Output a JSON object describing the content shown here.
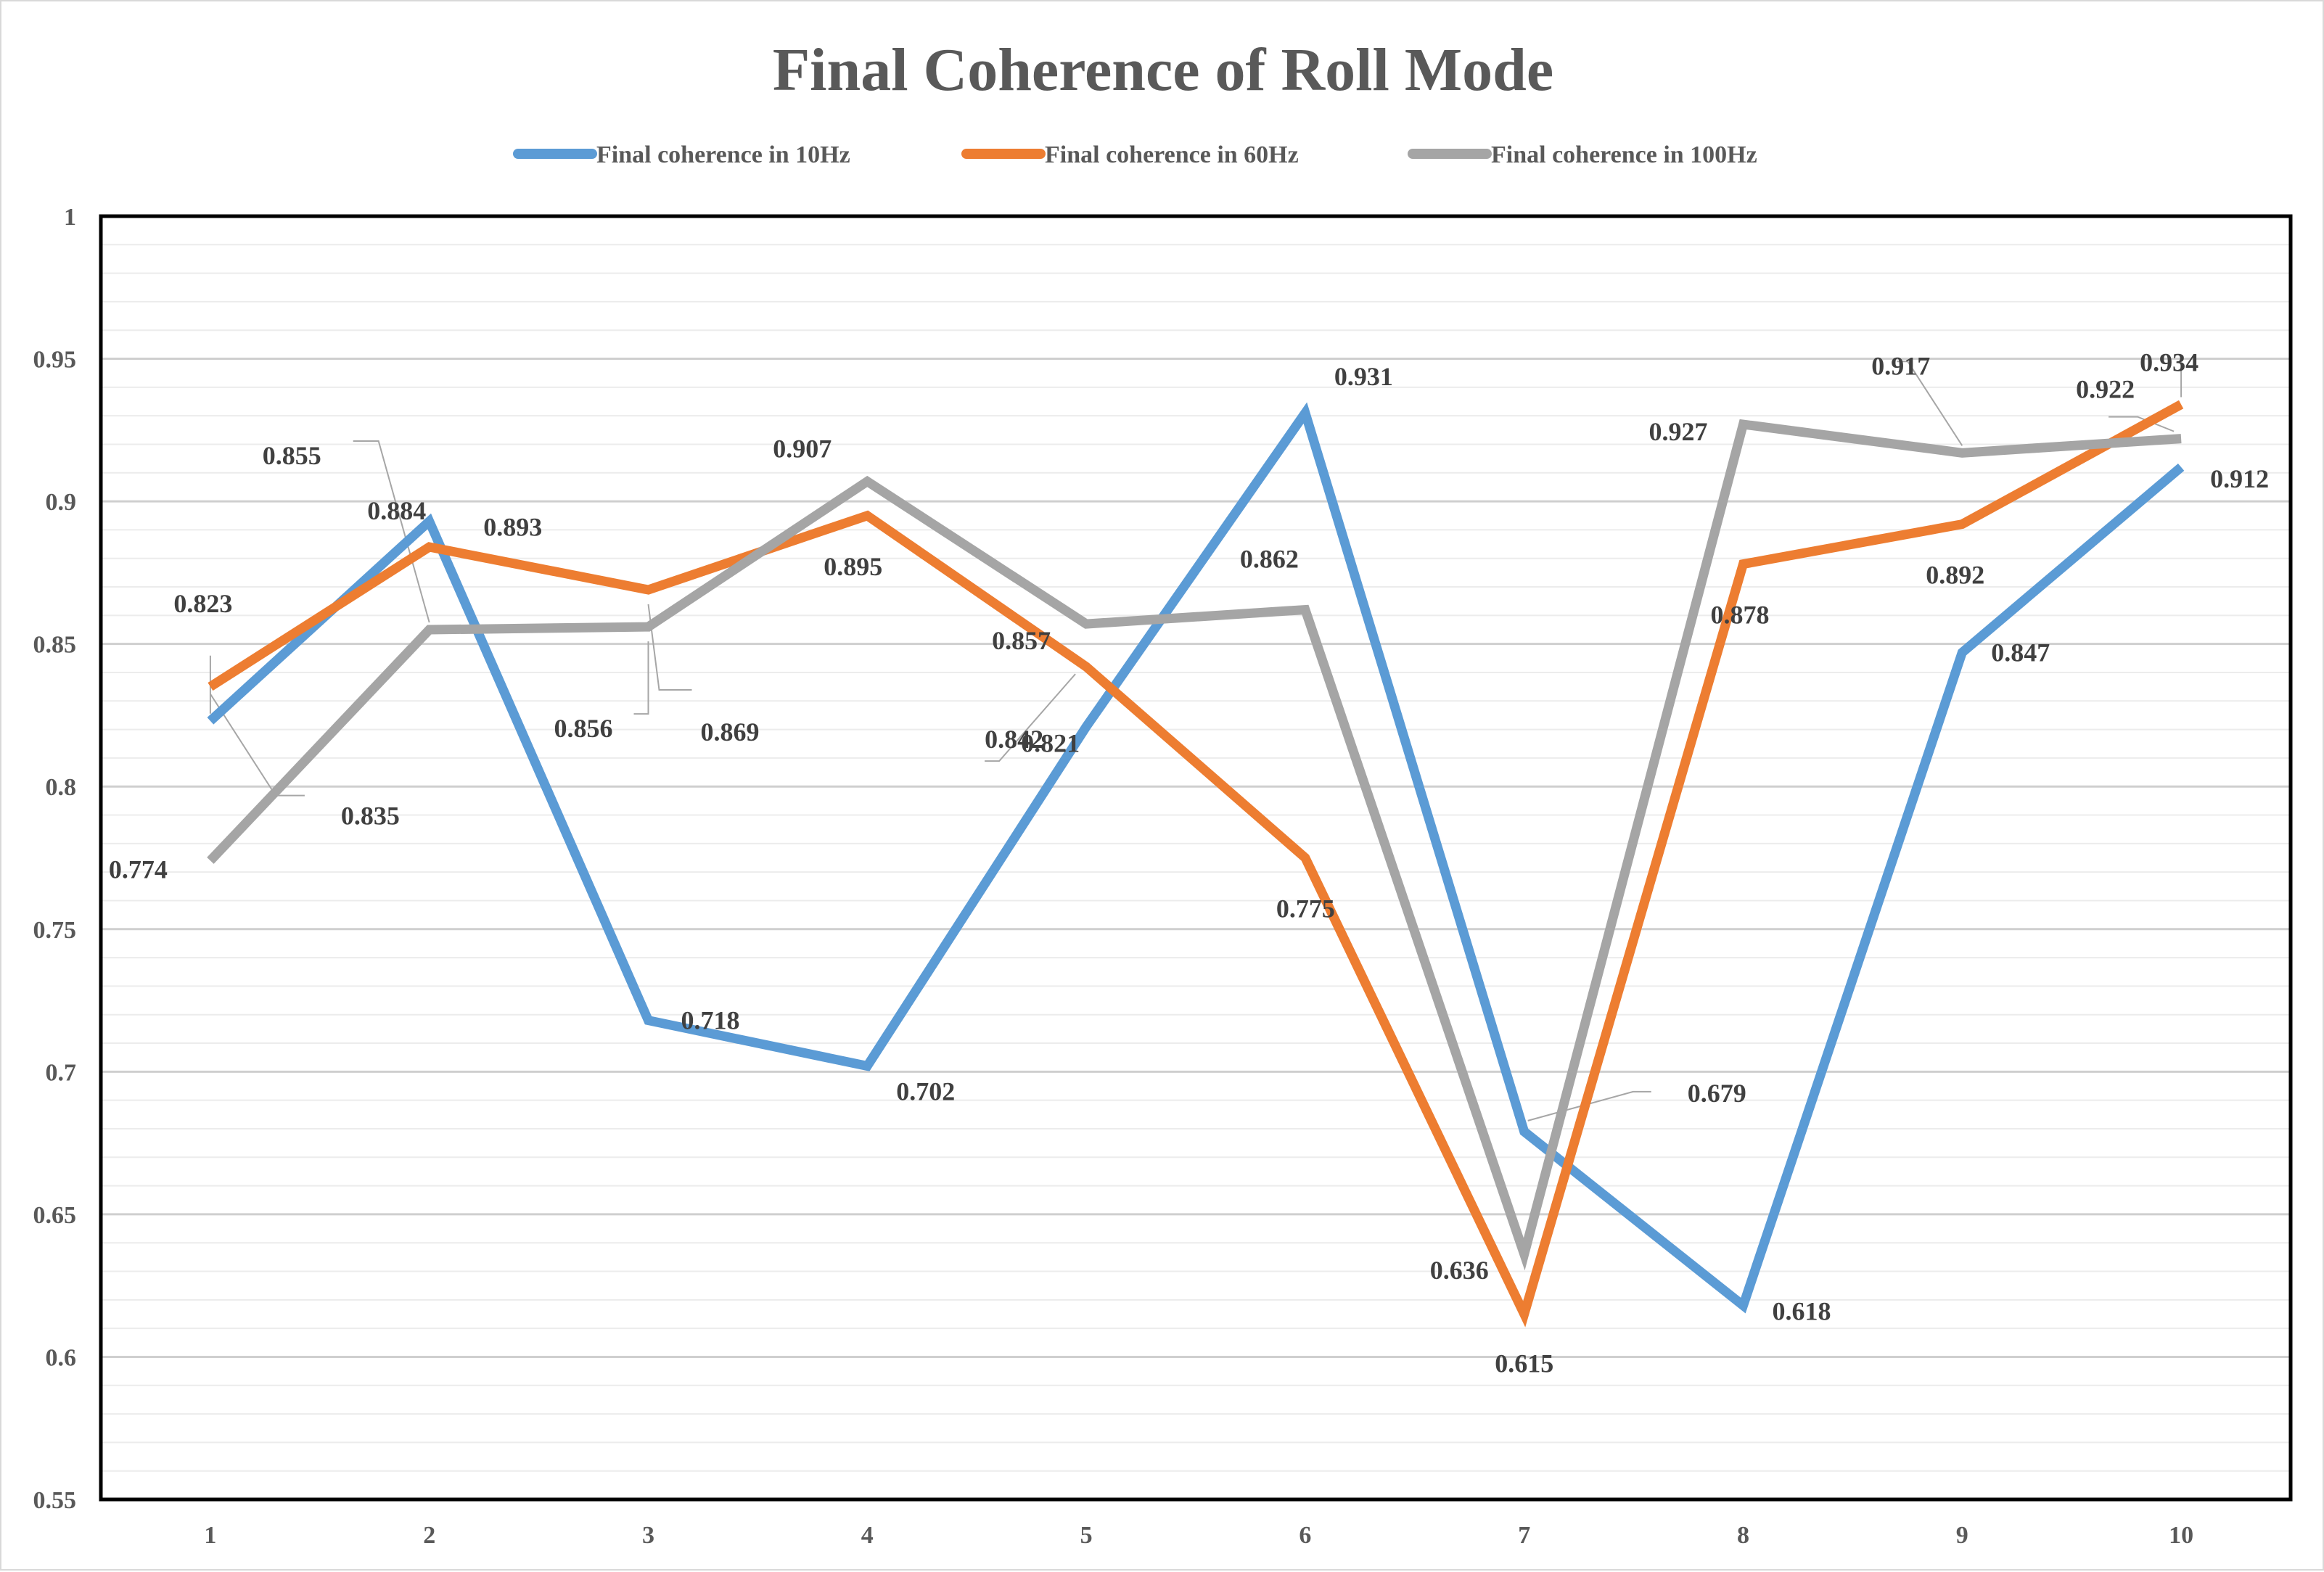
{
  "chart_data": {
    "type": "line",
    "title": "Final Coherence of Roll Mode",
    "xlabel": "",
    "ylabel": "",
    "categories": [
      "1",
      "2",
      "3",
      "4",
      "5",
      "6",
      "7",
      "8",
      "9",
      "10"
    ],
    "ylim": [
      0.55,
      1
    ],
    "yticks": [
      "0.55",
      "0.6",
      "0.65",
      "0.7",
      "0.75",
      "0.8",
      "0.85",
      "0.9",
      "0.95",
      "1"
    ],
    "grid": true,
    "legend_position": "top",
    "series": [
      {
        "name": "Final coherence in 10Hz",
        "color": "#5b9bd5",
        "values": [
          0.823,
          0.893,
          0.718,
          0.702,
          0.821,
          0.931,
          0.679,
          0.618,
          0.847,
          0.912
        ],
        "labels": [
          "0.823",
          "0.893",
          "0.718",
          "0.702",
          "0.821",
          "0.931",
          "0.679",
          "0.618",
          "0.847",
          "0.912"
        ]
      },
      {
        "name": "Final coherence in 60Hz",
        "color": "#ed7d31",
        "values": [
          0.835,
          0.884,
          0.869,
          0.895,
          0.842,
          0.775,
          0.615,
          0.878,
          0.892,
          0.934
        ],
        "labels": [
          "0.835",
          "0.884",
          "0.869",
          "0.895",
          "0.842",
          "0.775",
          "0.615",
          "0.878",
          "0.892",
          "0.934"
        ]
      },
      {
        "name": "Final coherence in 100Hz",
        "color": "#a5a5a5",
        "values": [
          0.774,
          0.855,
          0.856,
          0.907,
          0.857,
          0.862,
          0.636,
          0.927,
          0.917,
          0.922
        ],
        "labels": [
          "0.774",
          "0.855",
          "0.856",
          "0.907",
          "0.857",
          "0.862",
          "0.636",
          "0.927",
          "0.917",
          "0.922"
        ]
      }
    ]
  }
}
